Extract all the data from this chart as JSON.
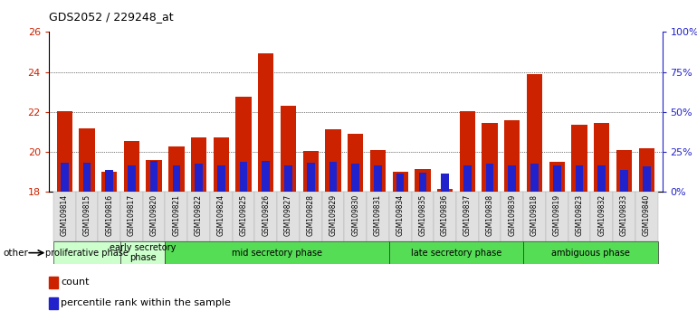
{
  "title": "GDS2052 / 229248_at",
  "samples": [
    "GSM109814",
    "GSM109815",
    "GSM109816",
    "GSM109817",
    "GSM109820",
    "GSM109821",
    "GSM109822",
    "GSM109824",
    "GSM109825",
    "GSM109826",
    "GSM109827",
    "GSM109828",
    "GSM109829",
    "GSM109830",
    "GSM109831",
    "GSM109834",
    "GSM109835",
    "GSM109836",
    "GSM109837",
    "GSM109838",
    "GSM109839",
    "GSM109818",
    "GSM109819",
    "GSM109823",
    "GSM109832",
    "GSM109833",
    "GSM109840"
  ],
  "count_values": [
    22.05,
    21.2,
    19.0,
    20.55,
    19.6,
    20.3,
    20.75,
    20.75,
    22.75,
    24.95,
    22.3,
    20.05,
    21.15,
    20.9,
    20.1,
    19.0,
    19.15,
    18.15,
    22.05,
    21.45,
    21.6,
    23.9,
    19.5,
    21.35,
    21.45,
    20.1,
    20.2
  ],
  "percentile_values": [
    19.45,
    19.45,
    19.1,
    19.35,
    19.55,
    19.35,
    19.4,
    19.35,
    19.5,
    19.55,
    19.35,
    19.45,
    19.5,
    19.4,
    19.35,
    18.9,
    18.95,
    18.9,
    19.35,
    19.4,
    19.35,
    19.4,
    19.35,
    19.35,
    19.35,
    19.1,
    19.3
  ],
  "phases_info": [
    {
      "label": "proliferative phase",
      "start": 0,
      "end": 3,
      "color": "#ccffcc"
    },
    {
      "label": "early secretory\nphase",
      "start": 3,
      "end": 5,
      "color": "#ccffcc"
    },
    {
      "label": "mid secretory phase",
      "start": 5,
      "end": 15,
      "color": "#55dd55"
    },
    {
      "label": "late secretory phase",
      "start": 15,
      "end": 21,
      "color": "#55dd55"
    },
    {
      "label": "ambiguous phase",
      "start": 21,
      "end": 27,
      "color": "#55dd55"
    }
  ],
  "ylim": [
    18,
    26
  ],
  "yticks_left": [
    18,
    20,
    22,
    24,
    26
  ],
  "bar_color": "#cc2200",
  "percentile_color": "#2222cc",
  "baseline": 18.0,
  "bar_width": 0.7,
  "pct_bar_width": 0.35
}
